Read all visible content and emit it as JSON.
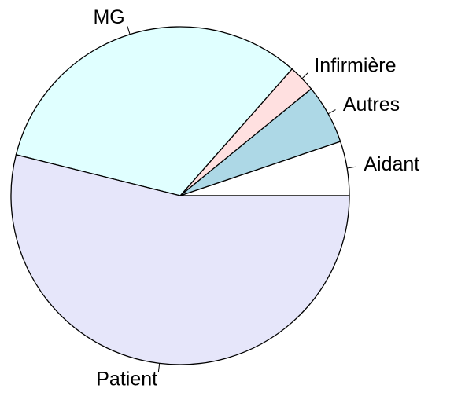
{
  "chart_data": {
    "type": "pie",
    "categories": [
      "Aidant",
      "Autres",
      "Infirmière",
      "MG",
      "Patient"
    ],
    "values": [
      5.2,
      5.7,
      2.6,
      32.6,
      53.9
    ],
    "colors": [
      "#ffffff",
      "#add8e6",
      "#ffe0e0",
      "#e0ffff",
      "#e6e6fa"
    ]
  }
}
